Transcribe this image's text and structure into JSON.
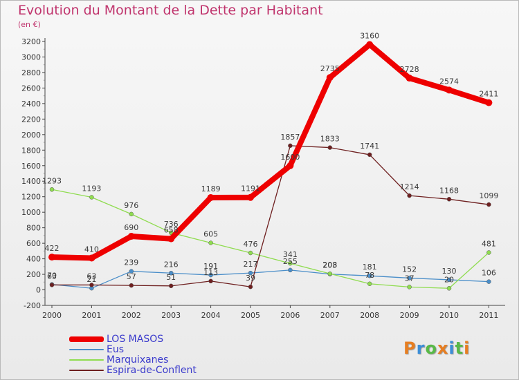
{
  "title": "Evolution du Montant de la Dette par Habitant",
  "subtitle": "(en €)",
  "brand": {
    "text": "Proxiti",
    "colors": [
      "#e67e22",
      "#3b8ed8",
      "#58b947",
      "#e67e22",
      "#3b8ed8",
      "#58b947",
      "#e67e22"
    ]
  },
  "chart_data": {
    "type": "line",
    "title": "Evolution du Montant de la Dette par Habitant",
    "subtitle": "(en €)",
    "xlabel": "",
    "ylabel": "",
    "x": [
      "2000",
      "2001",
      "2002",
      "2003",
      "2004",
      "2005",
      "2006",
      "2007",
      "2008",
      "2009",
      "2010",
      "2011"
    ],
    "ylim": [
      -200,
      3200
    ],
    "yticks": [
      -200,
      0,
      200,
      400,
      600,
      800,
      1000,
      1200,
      1400,
      1600,
      1800,
      2000,
      2200,
      2400,
      2600,
      2800,
      3000,
      3200
    ],
    "grid": false,
    "legend_position": "bottom-left",
    "series": [
      {
        "name": "LOS MASOS",
        "color": "#ee0000",
        "width": 8,
        "marker": 5,
        "values": [
          422,
          410,
          690,
          658,
          1189,
          1191,
          1600,
          2735,
          3160,
          2728,
          2574,
          2411
        ],
        "labels": [
          "422",
          "410",
          "690",
          "658",
          "1189",
          "1191",
          "1600",
          "2735",
          "3160",
          "2728",
          "2574",
          "2411"
        ]
      },
      {
        "name": "Eus",
        "color": "#4a8ec9",
        "width": 1.3,
        "marker": 3,
        "values": [
          70,
          21,
          239,
          216,
          191,
          217,
          255,
          203,
          181,
          152,
          130,
          106
        ],
        "labels": [
          "70",
          "21",
          "239",
          "216",
          "191",
          "217",
          "255",
          "203",
          "181",
          "152",
          "130",
          "106"
        ]
      },
      {
        "name": "Marquixanes",
        "color": "#8fdc4f",
        "width": 1.3,
        "marker": 3,
        "values": [
          1293,
          1193,
          976,
          736,
          605,
          476,
          341,
          208,
          78,
          37,
          20,
          481
        ],
        "labels": [
          "1293",
          "1193",
          "976",
          "736",
          "605",
          "476",
          "341",
          "208",
          "78",
          "37",
          "20",
          "481"
        ]
      },
      {
        "name": "Espira-de-Conflent",
        "color": "#6e1f1f",
        "width": 1.3,
        "marker": 3,
        "values": [
          63,
          63,
          57,
          51,
          113,
          39,
          1857,
          1833,
          1741,
          1214,
          1168,
          1099
        ],
        "labels": [
          "63",
          "63",
          "57",
          "51",
          "113",
          "39",
          "1857",
          "1833",
          "1741",
          "1214",
          "1168",
          "1099"
        ]
      }
    ]
  }
}
